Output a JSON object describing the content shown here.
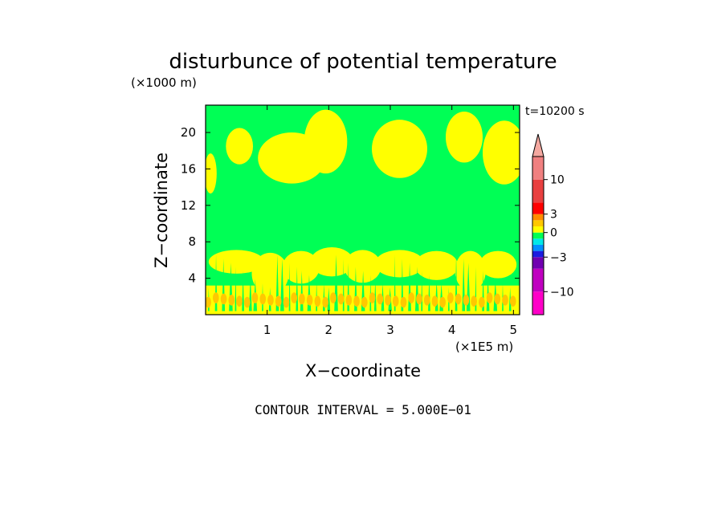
{
  "chart_data": {
    "type": "heatmap",
    "title": "disturbunce of potential temperature",
    "y_unit": "(×1000 m)",
    "x_unit": "(×1E5 m)",
    "xlabel": "X−coordinate",
    "ylabel": "Z−coordinate",
    "time_label": "t=10200 s",
    "footnote": "CONTOUR INTERVAL = 5.000E−01",
    "xlim": [
      0,
      5.1
    ],
    "ylim": [
      0,
      23
    ],
    "x_ticks": [
      {
        "value": 1,
        "label": "1"
      },
      {
        "value": 2,
        "label": "2"
      },
      {
        "value": 3,
        "label": "3"
      },
      {
        "value": 4,
        "label": "4"
      },
      {
        "value": 5,
        "label": "5"
      }
    ],
    "y_ticks": [
      {
        "value": 4,
        "label": "4"
      },
      {
        "value": 8,
        "label": "8"
      },
      {
        "value": 12,
        "label": "12"
      },
      {
        "value": 16,
        "label": "16"
      },
      {
        "value": 20,
        "label": "20"
      }
    ],
    "colorbar": {
      "levels": [
        {
          "from": -15,
          "to": -10,
          "color": "#ff00c8"
        },
        {
          "from": -10,
          "to": -5,
          "color": "#c000c0"
        },
        {
          "from": -5,
          "to": -3,
          "color": "#7000b0"
        },
        {
          "from": -3,
          "to": -2,
          "color": "#1c1ce0"
        },
        {
          "from": -2,
          "to": -1,
          "color": "#0090ff"
        },
        {
          "from": -1,
          "to": -0.5,
          "color": "#00e8e8"
        },
        {
          "from": -0.5,
          "to": 0,
          "color": "#00ff55"
        },
        {
          "from": 0,
          "to": 1,
          "color": "#ffff00"
        },
        {
          "from": 1,
          "to": 2,
          "color": "#ffc800"
        },
        {
          "from": 2,
          "to": 3,
          "color": "#ff8c00"
        },
        {
          "from": 3,
          "to": 5,
          "color": "#ff0000"
        },
        {
          "from": 5,
          "to": 10,
          "color": "#e84040"
        },
        {
          "from": 10,
          "to": 15,
          "color": "#f08080"
        }
      ],
      "extend_color": "#f4a8a0",
      "tick_labels": [
        {
          "value": 10,
          "label": "10"
        },
        {
          "value": 3,
          "label": "3"
        },
        {
          "value": 0,
          "label": "0"
        },
        {
          "value": -3,
          "label": "−3"
        },
        {
          "value": -10,
          "label": "−10"
        }
      ]
    },
    "field_colors": {
      "background": "#00ff55",
      "warm": "#ffff00",
      "hot": "#ffc800"
    },
    "regions": {
      "upper_warm_blobs": [
        {
          "x": 0.08,
          "z": 15.5,
          "rx": 0.1,
          "rz": 2.2
        },
        {
          "x": 0.55,
          "z": 18.5,
          "rx": 0.22,
          "rz": 2.0
        },
        {
          "x": 1.4,
          "z": 17.2,
          "rx": 0.55,
          "rz": 2.8
        },
        {
          "x": 1.95,
          "z": 19.0,
          "rx": 0.35,
          "rz": 3.5
        },
        {
          "x": 3.15,
          "z": 18.2,
          "rx": 0.45,
          "rz": 3.2
        },
        {
          "x": 4.2,
          "z": 19.5,
          "rx": 0.3,
          "rz": 2.8
        },
        {
          "x": 4.85,
          "z": 17.8,
          "rx": 0.35,
          "rz": 3.5
        }
      ],
      "lower_warm_blobs": [
        {
          "x": 0.5,
          "z": 5.8,
          "rx": 0.45,
          "rz": 1.3
        },
        {
          "x": 1.05,
          "z": 4.5,
          "rx": 0.3,
          "rz": 2.3
        },
        {
          "x": 1.55,
          "z": 5.2,
          "rx": 0.3,
          "rz": 1.8
        },
        {
          "x": 2.05,
          "z": 5.8,
          "rx": 0.35,
          "rz": 1.6
        },
        {
          "x": 2.55,
          "z": 5.3,
          "rx": 0.3,
          "rz": 1.8
        },
        {
          "x": 3.15,
          "z": 5.6,
          "rx": 0.4,
          "rz": 1.5
        },
        {
          "x": 3.75,
          "z": 5.4,
          "rx": 0.35,
          "rz": 1.6
        },
        {
          "x": 4.3,
          "z": 4.8,
          "rx": 0.25,
          "rz": 2.2
        },
        {
          "x": 4.75,
          "z": 5.5,
          "rx": 0.3,
          "rz": 1.5
        }
      ],
      "hot_band_z": [
        1.0,
        2.2
      ]
    }
  }
}
